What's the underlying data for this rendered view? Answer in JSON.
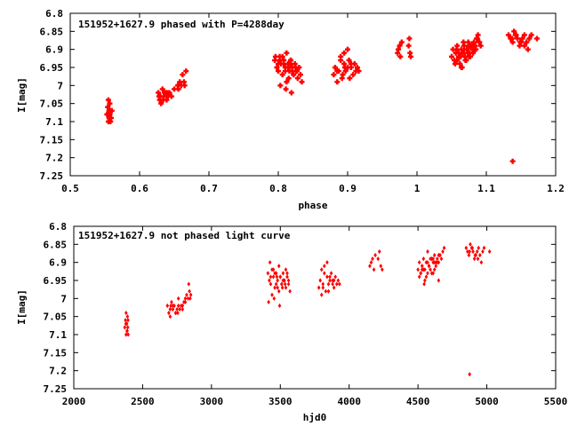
{
  "chart_data": [
    {
      "type": "scatter",
      "title": "151952+1627.9 phased with P=4288day",
      "xlabel": "phase",
      "ylabel": "I[mag]",
      "xlim": [
        0.5,
        1.2
      ],
      "ylim": [
        6.8,
        7.25
      ],
      "y_inverted": true,
      "xticks": [
        "0.5",
        "0.6",
        "0.7",
        "0.8",
        "0.9",
        "1",
        "1.1",
        "1.2"
      ],
      "yticks": [
        "6.8",
        "6.85",
        "6.9",
        "6.95",
        "7",
        "7.05",
        "7.1",
        "7.15",
        "7.2",
        "7.25"
      ],
      "color": "#ff0000",
      "marker": "plus",
      "series": [
        {
          "x": [
            0.553,
            0.554,
            0.555,
            0.555,
            0.556,
            0.556,
            0.557,
            0.557,
            0.558,
            0.558,
            0.559,
            0.56,
            0.554,
            0.557,
            0.627,
            0.629,
            0.631,
            0.633,
            0.635,
            0.637,
            0.639,
            0.641,
            0.643,
            0.63,
            0.636,
            0.628,
            0.634,
            0.64,
            0.646,
            0.65,
            0.655,
            0.66,
            0.662,
            0.664,
            0.665,
            0.658,
            0.667,
            0.656,
            0.795,
            0.798,
            0.8,
            0.802,
            0.804,
            0.806,
            0.808,
            0.81,
            0.812,
            0.814,
            0.816,
            0.818,
            0.82,
            0.822,
            0.824,
            0.826,
            0.828,
            0.83,
            0.832,
            0.834,
            0.8,
            0.806,
            0.81,
            0.815,
            0.82,
            0.825,
            0.802,
            0.812,
            0.818,
            0.822,
            0.808,
            0.814,
            0.796,
            0.803,
            0.811,
            0.819,
            0.827,
            0.817,
            0.88,
            0.882,
            0.885,
            0.887,
            0.89,
            0.892,
            0.895,
            0.897,
            0.9,
            0.902,
            0.905,
            0.908,
            0.91,
            0.912,
            0.914,
            0.916,
            0.89,
            0.895,
            0.9,
            0.905,
            0.885,
            0.893,
            0.903,
            0.896,
            0.972,
            0.973,
            0.975,
            0.976,
            0.978,
            0.988,
            0.989,
            0.99,
            0.991,
            1.05,
            1.052,
            1.054,
            1.056,
            1.058,
            1.06,
            1.062,
            1.064,
            1.066,
            1.068,
            1.07,
            1.072,
            1.074,
            1.076,
            1.078,
            1.08,
            1.082,
            1.084,
            1.086,
            1.088,
            1.09,
            1.092,
            1.055,
            1.06,
            1.065,
            1.07,
            1.075,
            1.08,
            1.085,
            1.09,
            1.058,
            1.063,
            1.068,
            1.073,
            1.078,
            1.083,
            1.057,
            1.067,
            1.077,
            1.087,
            1.071,
            1.064,
            1.081,
            1.075,
            1.069,
            1.132,
            1.135,
            1.138,
            1.14,
            1.142,
            1.145,
            1.148,
            1.15,
            1.152,
            1.155,
            1.158,
            1.16,
            1.162,
            1.165,
            1.173,
            1.137,
            1.143,
            1.149,
            1.155,
            1.138
          ],
          "y": [
            7.08,
            7.06,
            7.1,
            7.04,
            7.07,
            7.09,
            7.05,
            7.08,
            7.1,
            7.07,
            7.09,
            7.07,
            7.08,
            7.09,
            7.02,
            7.04,
            7.05,
            7.01,
            7.03,
            7.02,
            7.04,
            7.03,
            7.02,
            7.03,
            7.02,
            7.03,
            7.04,
            7.02,
            7.03,
            7.01,
            7,
            7.0,
            6.97,
            6.99,
            7.0,
            6.99,
            6.96,
            7.01,
            6.93,
            6.95,
            6.96,
            6.92,
            6.94,
            6.97,
            6.93,
            6.95,
            6.91,
            6.94,
            6.96,
            6.93,
            6.95,
            6.97,
            6.94,
            6.96,
            6.98,
            6.95,
            6.97,
            6.99,
            6.94,
            6.92,
            6.96,
            6.98,
            6.96,
            6.95,
            6.93,
            6.99,
            6.93,
            6.97,
            6.94,
            6.95,
            6.92,
            7.0,
            7.01,
            7.02,
            6.96,
            6.94,
            6.97,
            6.95,
            6.99,
            6.96,
            6.93,
            6.98,
            6.94,
            6.96,
            6.95,
            6.93,
            6.95,
            6.97,
            6.94,
            6.96,
            6.95,
            6.96,
            6.92,
            6.91,
            6.9,
            6.94,
            6.96,
            6.97,
            6.98,
            6.95,
            6.91,
            6.9,
            6.89,
            6.92,
            6.88,
            6.89,
            6.87,
            6.91,
            6.92,
            6.92,
            6.9,
            6.93,
            6.91,
            6.89,
            6.92,
            6.94,
            6.9,
            6.91,
            6.89,
            6.93,
            6.9,
            6.88,
            6.91,
            6.89,
            6.9,
            6.88,
            6.89,
            6.87,
            6.86,
            6.88,
            6.89,
            6.94,
            6.91,
            6.95,
            6.93,
            6.92,
            6.89,
            6.9,
            6.88,
            6.93,
            6.92,
            6.9,
            6.91,
            6.89,
            6.9,
            6.9,
            6.88,
            6.92,
            6.87,
            6.93,
            6.95,
            6.91,
            6.89,
            6.92,
            6.86,
            6.87,
            6.88,
            6.85,
            6.86,
            6.87,
            6.89,
            6.88,
            6.87,
            6.86,
            6.88,
            6.9,
            6.87,
            6.86,
            6.87,
            6.87,
            6.86,
            6.88,
            6.89,
            7.21
          ]
        }
      ]
    },
    {
      "type": "scatter",
      "title": "151952+1627.9 not phased light curve",
      "xlabel": "hjd0",
      "ylabel": "I[mag]",
      "xlim": [
        2000,
        5500
      ],
      "ylim": [
        6.8,
        7.25
      ],
      "y_inverted": true,
      "xticks": [
        "2000",
        "2500",
        "3000",
        "3500",
        "4000",
        "4500",
        "5000",
        "5500"
      ],
      "yticks": [
        "6.8",
        "6.85",
        "6.9",
        "6.95",
        "7",
        "7.05",
        "7.1",
        "7.15",
        "7.2",
        "7.25"
      ],
      "color": "#ff0000",
      "marker": "diamond",
      "series": [
        {
          "x": [
            2370,
            2375,
            2380,
            2380,
            2385,
            2388,
            2390,
            2392,
            2395,
            2378,
            2386,
            2394,
            2680,
            2690,
            2700,
            2710,
            2720,
            2730,
            2740,
            2750,
            2760,
            2770,
            2780,
            2790,
            2800,
            2810,
            2820,
            2830,
            2840,
            2850,
            2700,
            2720,
            2740,
            2760,
            2790,
            2810,
            2835,
            2845,
            2705,
            2755,
            3410,
            3420,
            3430,
            3440,
            3450,
            3460,
            3470,
            3480,
            3490,
            3500,
            3510,
            3520,
            3530,
            3540,
            3550,
            3560,
            3570,
            3430,
            3450,
            3470,
            3490,
            3510,
            3530,
            3550,
            3440,
            3460,
            3480,
            3500,
            3520,
            3540,
            3415,
            3455,
            3495,
            3535,
            3475,
            3515,
            3560,
            3425,
            3780,
            3790,
            3800,
            3810,
            3820,
            3830,
            3840,
            3850,
            3860,
            3870,
            3880,
            3890,
            3900,
            3910,
            3920,
            3930,
            3800,
            3820,
            3840,
            3860,
            3880,
            3810,
            3850,
            3890,
            4150,
            4160,
            4170,
            4180,
            4190,
            4210,
            4220,
            4230,
            4240,
            4500,
            4510,
            4520,
            4530,
            4540,
            4550,
            4560,
            4570,
            4580,
            4590,
            4600,
            4610,
            4620,
            4630,
            4640,
            4650,
            4660,
            4670,
            4680,
            4690,
            4510,
            4530,
            4550,
            4570,
            4590,
            4610,
            4630,
            4650,
            4520,
            4540,
            4560,
            4580,
            4600,
            4620,
            4640,
            4660,
            4530,
            4570,
            4610,
            4650,
            4580,
            4600,
            4620,
            4545,
            4850,
            4860,
            4870,
            4880,
            4890,
            4900,
            4910,
            4920,
            4930,
            4940,
            4950,
            4960,
            4970,
            4980,
            5020,
            4875,
            4895,
            4915,
            4935,
            4875
          ],
          "y": [
            7.08,
            7.06,
            7.1,
            7.04,
            7.07,
            7.09,
            7.05,
            7.08,
            7.1,
            7.07,
            7.09,
            7.06,
            7.02,
            7.04,
            7.05,
            7.01,
            7.03,
            7.02,
            7.04,
            7.03,
            7.02,
            7.03,
            7.02,
            7.03,
            7.01,
            7.0,
            6.99,
            7.0,
            6.98,
            6.99,
            7.03,
            7.02,
            7.04,
            7.0,
            7.02,
            7.01,
            6.96,
            7.0,
            7.02,
            7.04,
            6.93,
            6.95,
            6.96,
            6.92,
            6.94,
            6.97,
            6.93,
            6.95,
            6.91,
            6.94,
            6.96,
            6.93,
            6.95,
            6.97,
            6.94,
            6.96,
            6.98,
            6.94,
            6.92,
            6.96,
            6.98,
            6.96,
            6.95,
            6.93,
            6.99,
            6.93,
            6.97,
            6.94,
            6.95,
            6.92,
            7.01,
            7.0,
            7.02,
            6.96,
            6.94,
            6.97,
            6.95,
            6.9,
            6.97,
            6.95,
            6.99,
            6.96,
            6.93,
            6.98,
            6.94,
            6.96,
            6.95,
            6.93,
            6.95,
            6.97,
            6.94,
            6.96,
            6.95,
            6.96,
            6.92,
            6.91,
            6.9,
            6.94,
            6.96,
            6.97,
            6.98,
            6.95,
            6.91,
            6.9,
            6.89,
            6.92,
            6.88,
            6.89,
            6.87,
            6.91,
            6.92,
            6.92,
            6.9,
            6.93,
            6.91,
            6.89,
            6.92,
            6.94,
            6.9,
            6.91,
            6.89,
            6.93,
            6.9,
            6.88,
            6.91,
            6.89,
            6.9,
            6.88,
            6.89,
            6.87,
            6.86,
            6.94,
            6.91,
            6.95,
            6.93,
            6.92,
            6.89,
            6.9,
            6.88,
            6.93,
            6.92,
            6.9,
            6.91,
            6.89,
            6.9,
            6.9,
            6.88,
            6.92,
            6.87,
            6.93,
            6.95,
            6.91,
            6.89,
            6.92,
            6.96,
            6.86,
            6.87,
            6.88,
            6.85,
            6.86,
            6.87,
            6.89,
            6.88,
            6.87,
            6.86,
            6.88,
            6.9,
            6.87,
            6.86,
            6.87,
            6.87,
            6.86,
            6.88,
            6.89,
            7.21
          ]
        }
      ]
    }
  ]
}
